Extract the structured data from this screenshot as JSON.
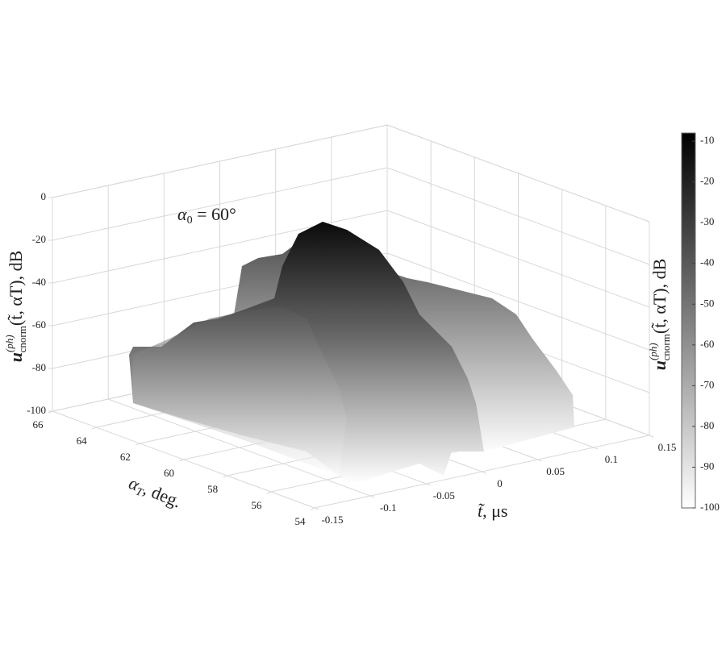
{
  "chart_data": {
    "type": "surface3d",
    "annotation": {
      "symbol": "α",
      "subscript": "0",
      "text": " = 60°"
    },
    "x_label": {
      "symbol": "t̃",
      "text": ", μs"
    },
    "y_label": {
      "symbol": "α",
      "subscript": "T",
      "text": ", deg."
    },
    "z_label": {
      "symbol": "u",
      "superscript": "(ph)",
      "subscript": "cnorm",
      "text": "(t̃, αT), dB"
    },
    "xlim": [
      -0.15,
      0.15
    ],
    "xticks": [
      -0.15,
      -0.1,
      -0.05,
      0,
      0.05,
      0.1,
      0.15
    ],
    "ylim": [
      54,
      66
    ],
    "yticks": [
      54,
      56,
      58,
      60,
      62,
      64,
      66
    ],
    "zlim": [
      -100,
      0
    ],
    "zticks": [
      -100,
      -80,
      -60,
      -40,
      -20,
      0
    ],
    "grid": true,
    "colorbar": {
      "clim": [
        -100,
        -8
      ],
      "ticks": [
        -100,
        -90,
        -80,
        -70,
        -60,
        -50,
        -40,
        -30,
        -20,
        -10
      ],
      "color_high": "#000000",
      "color_low": "#ffffff"
    }
  }
}
